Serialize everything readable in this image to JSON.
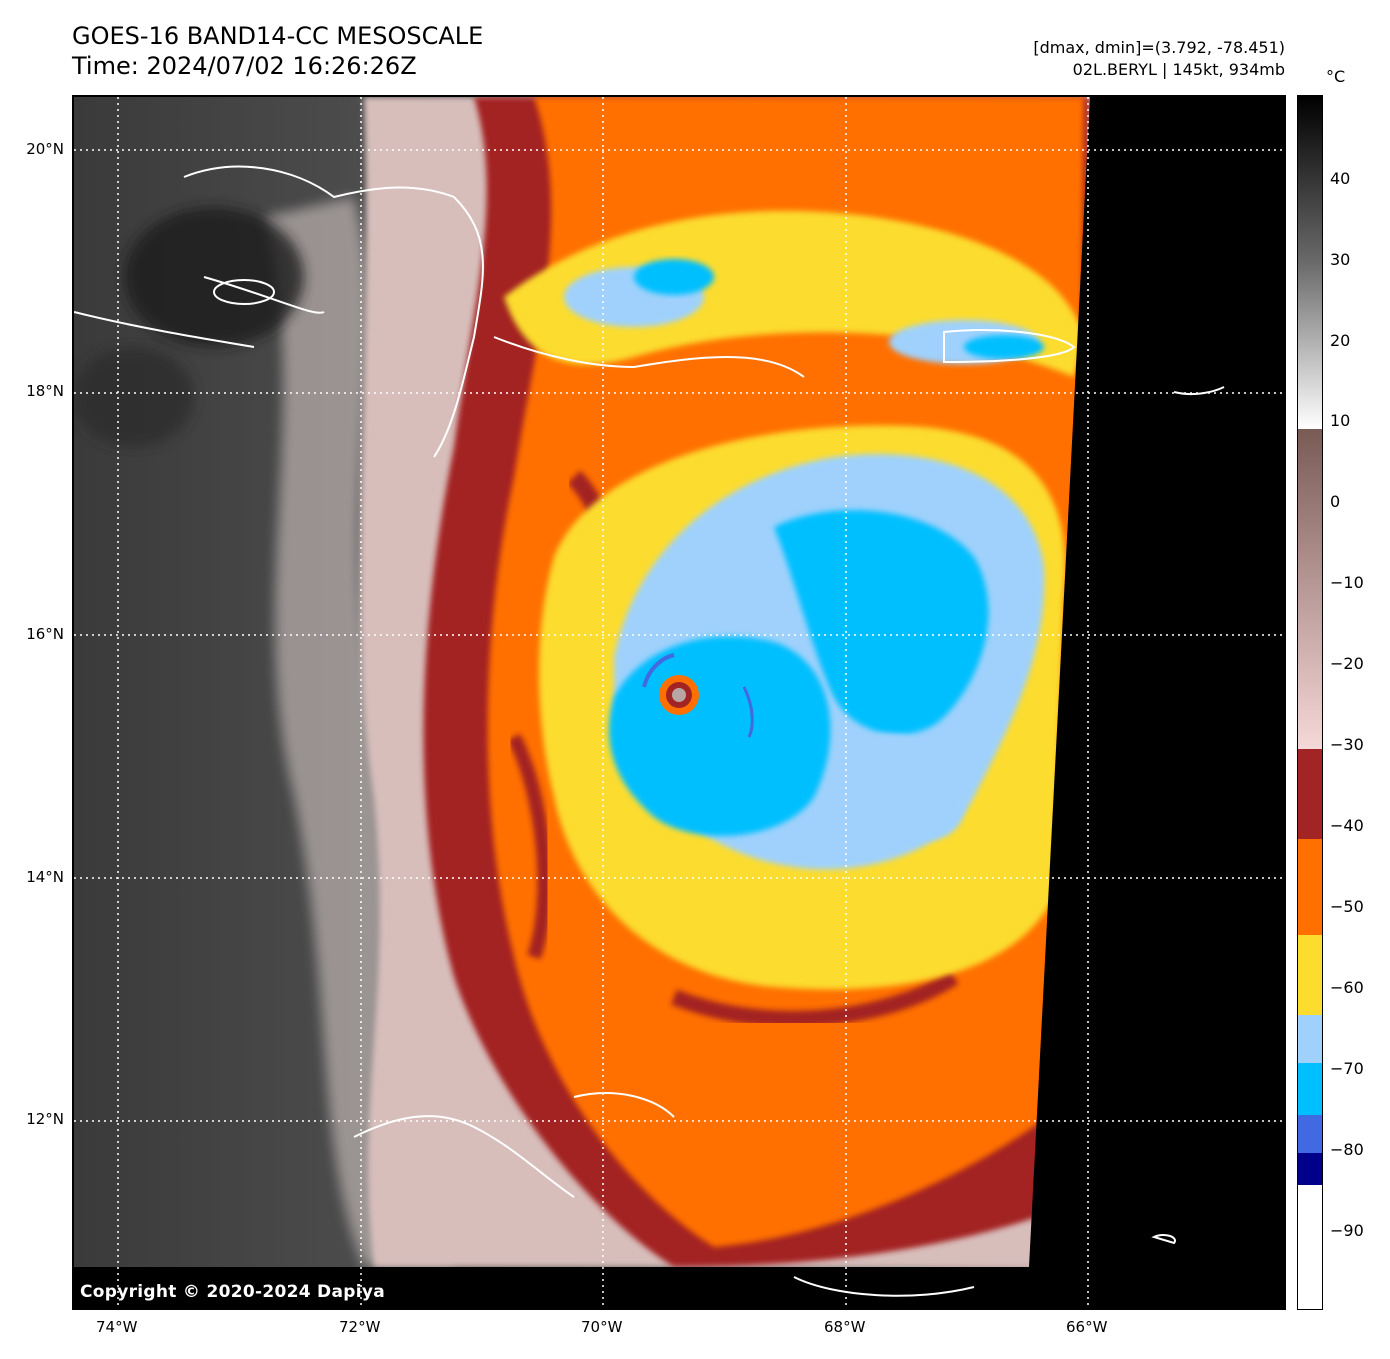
{
  "header": {
    "title_line1": "GOES-16 BAND14-CC MESOSCALE",
    "title_line2": "Time: 2024/07/02 16:26:26Z",
    "stats_line": "[dmax, dmin]=(3.792, -78.451)",
    "storm_line": "02L.BERYL | 145kt, 934mb"
  },
  "map": {
    "lat_labels": [
      "20°N",
      "18°N",
      "16°N",
      "14°N",
      "12°N"
    ],
    "lon_labels": [
      "74°W",
      "72°W",
      "70°W",
      "68°W",
      "66°W"
    ],
    "copyright": "Copyright © 2020-2024 Dapiya"
  },
  "colorbar": {
    "unit": "°C",
    "tick_labels": [
      "40",
      "30",
      "20",
      "10",
      "0",
      "−10",
      "−20",
      "−30",
      "−40",
      "−50",
      "−60",
      "−70",
      "−80",
      "−90"
    ],
    "colors": {
      "warm_black": "#000000",
      "gray_white": "#ffffff",
      "brown": "#7a5a55",
      "pink": "#f5d8d8",
      "dark_red": "#a32424",
      "orange": "#ff7000",
      "yellow": "#fcdc2d",
      "light_blue": "#9fd1fc",
      "cyan": "#00bfff",
      "blue": "#4169e1",
      "navy": "#00008b",
      "cold_white": "#ffffff"
    }
  }
}
